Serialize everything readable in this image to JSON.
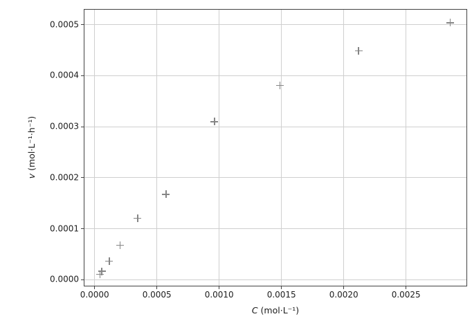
{
  "chart_data": {
    "type": "scatter",
    "title": "",
    "xlabel": "C (mol·L⁻¹)",
    "ylabel": "v (mol·L⁻¹·h⁻¹)",
    "xlabel_var": "C",
    "xlabel_rest": " (mol·L⁻¹)",
    "ylabel_var": "v",
    "ylabel_rest": " (mol·L⁻¹·h⁻¹)",
    "marker_style": "plus",
    "marker_color": "#858585",
    "grid": true,
    "grid_color": "#cfcfcf",
    "spine_color": "#424242",
    "text_color": "#1c1c1c",
    "xlim": [
      -8.72e-05,
      0.0029906
    ],
    "ylim": [
      -1.29e-05,
      0.0005305
    ],
    "x_ticks": [
      0.0,
      0.0005,
      0.001,
      0.0015,
      0.002,
      0.0025
    ],
    "x_tick_labels": [
      "0.0000",
      "0.0005",
      "0.0010",
      "0.0015",
      "0.0020",
      "0.0025"
    ],
    "y_ticks": [
      0.0,
      0.0001,
      0.0002,
      0.0003,
      0.0004,
      0.0005
    ],
    "y_tick_labels": [
      "0.0000",
      "0.0001",
      "0.0002",
      "0.0003",
      "0.0004",
      "0.0005"
    ],
    "points": [
      {
        "x": 3.7e-05,
        "y": 1.2e-05
      },
      {
        "x": 5.2e-05,
        "y": 1.8e-05
      },
      {
        "x": 0.000111,
        "y": 3.8e-05
      },
      {
        "x": 0.000198,
        "y": 6.9e-05
      },
      {
        "x": 0.000339,
        "y": 0.000122
      },
      {
        "x": 0.000567,
        "y": 0.000169
      },
      {
        "x": 0.000957,
        "y": 0.000311
      },
      {
        "x": 0.001483,
        "y": 0.000382
      },
      {
        "x": 0.002113,
        "y": 0.00045
      },
      {
        "x": 0.002848,
        "y": 0.000505
      }
    ]
  }
}
